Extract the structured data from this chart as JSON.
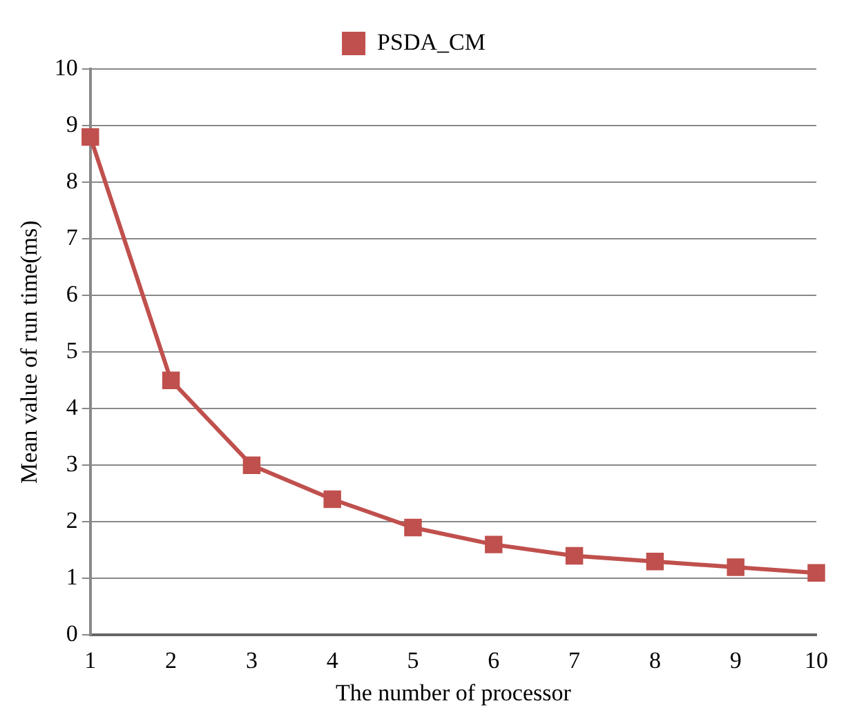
{
  "chart_data": {
    "type": "line",
    "xlabel": "The number of processor",
    "ylabel": "Mean value of run time(ms)",
    "categories": [
      "1",
      "2",
      "3",
      "4",
      "5",
      "6",
      "7",
      "8",
      "9",
      "10"
    ],
    "series": [
      {
        "name": "PSDA_CM",
        "color": "#c0504d",
        "values": [
          8.8,
          4.5,
          3.0,
          2.4,
          1.9,
          1.6,
          1.4,
          1.3,
          1.2,
          1.1
        ]
      }
    ],
    "ylim": [
      0,
      10
    ],
    "yticks": [
      0,
      1,
      2,
      3,
      4,
      5,
      6,
      7,
      8,
      9,
      10
    ],
    "grid": "y",
    "legend": "top",
    "marker": "square",
    "line_style": "solid"
  }
}
